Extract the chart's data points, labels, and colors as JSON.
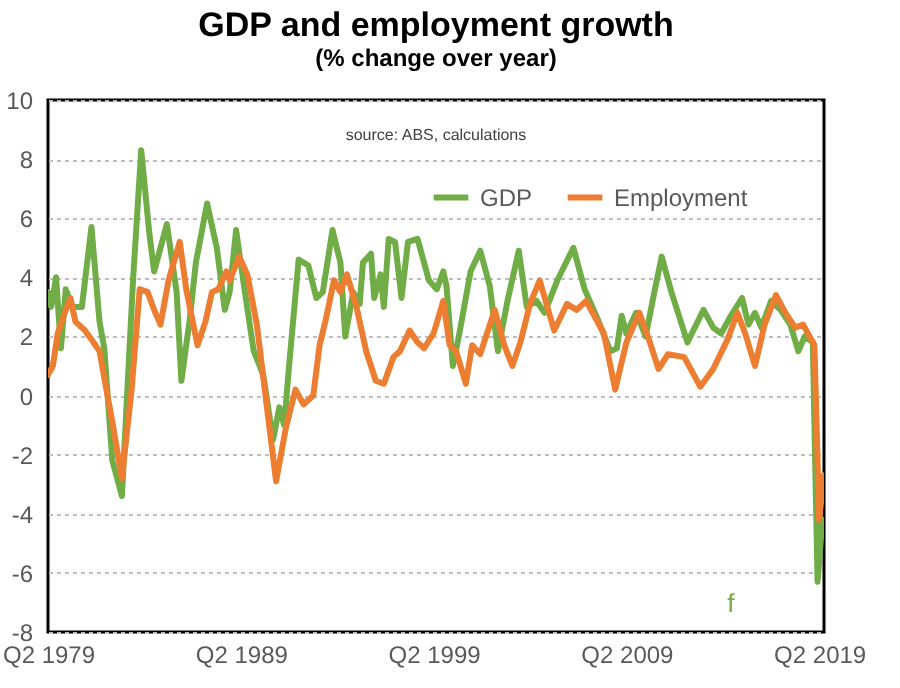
{
  "chart_data": {
    "type": "line",
    "title": "GDP and employment growth",
    "subtitle": "(% change over year)",
    "annotations": [
      "source: ABS, calculations",
      "f"
    ],
    "xlim": [
      "1979-05",
      "2019-08"
    ],
    "xticks": [
      {
        "value": "1979-05",
        "label": "Q2 1979"
      },
      {
        "value": "1989-05",
        "label": "Q2 1989"
      },
      {
        "value": "1999-05",
        "label": "Q2 1999"
      },
      {
        "value": "2009-05",
        "label": "Q2 2009"
      },
      {
        "value": "2019-05",
        "label": "Q2 2019"
      }
    ],
    "ylim": [
      -8,
      10
    ],
    "yticks": [
      -8,
      -6,
      -4,
      -2,
      0,
      2,
      4,
      6,
      8,
      10
    ],
    "grid": "y",
    "legend": "top right",
    "line_style": "solid",
    "series": [
      {
        "name": "GDP",
        "color": "#70ad47",
        "x": [
          "1979-05",
          "1979-07",
          "1979-10",
          "1980-01",
          "1980-04",
          "1980-08",
          "1981-02",
          "1981-08",
          "1982-01",
          "1982-04",
          "1982-09",
          "1983-03",
          "1983-10",
          "1984-03",
          "1984-08",
          "1984-11",
          "1985-07",
          "1986-01",
          "1986-04",
          "1986-09",
          "1987-01",
          "1987-08",
          "1988-02",
          "1988-07",
          "1988-10",
          "1989-02",
          "1989-07",
          "1990-01",
          "1990-07",
          "1991-01",
          "1991-05",
          "1991-08",
          "1991-11",
          "1992-05",
          "1992-11",
          "1993-04",
          "1993-08",
          "1994-02",
          "1994-07",
          "1994-10",
          "1995-03",
          "1995-07",
          "1995-09",
          "1996-02",
          "1996-04",
          "1996-08",
          "1996-10",
          "1997-01",
          "1997-05",
          "1997-09",
          "1998-01",
          "1998-07",
          "1999-02",
          "1999-07",
          "1999-11",
          "2000-01",
          "2000-05",
          "2000-09",
          "2001-04",
          "2001-10",
          "2002-04",
          "2002-09",
          "2003-03",
          "2003-10",
          "2004-03",
          "2004-09",
          "2005-02",
          "2005-10",
          "2006-08",
          "2007-03",
          "2007-11",
          "2008-07",
          "2008-11",
          "2009-02",
          "2009-05",
          "2009-11",
          "2010-05",
          "2010-10",
          "2011-03",
          "2011-09",
          "2012-07",
          "2013-05",
          "2013-11",
          "2014-04",
          "2014-10",
          "2015-05",
          "2015-09",
          "2016-01",
          "2016-05",
          "2016-11",
          "2017-05",
          "2017-11",
          "2018-04",
          "2018-08",
          "2019-01",
          "2019-04",
          "2019-07"
        ],
        "values": [
          3.5,
          3.0,
          4.0,
          1.6,
          3.6,
          3.0,
          3.0,
          5.7,
          2.5,
          1.6,
          -2.2,
          -3.4,
          4.0,
          8.3,
          5.5,
          4.2,
          5.8,
          3.5,
          0.5,
          2.5,
          4.5,
          6.5,
          5.0,
          2.9,
          3.5,
          5.6,
          3.7,
          1.5,
          0.7,
          -1.5,
          -0.4,
          -1.0,
          1.0,
          4.6,
          4.4,
          3.3,
          3.5,
          5.6,
          4.5,
          2.0,
          3.5,
          3.1,
          4.5,
          4.8,
          3.3,
          4.1,
          3.0,
          5.3,
          5.2,
          3.3,
          5.2,
          5.3,
          3.9,
          3.6,
          4.2,
          3.7,
          1.0,
          2.1,
          4.2,
          4.9,
          3.7,
          1.5,
          3.2,
          4.9,
          3.0,
          3.2,
          2.8,
          3.9,
          5.0,
          3.6,
          2.6,
          1.5,
          1.6,
          2.7,
          2.1,
          2.8,
          2.0,
          3.4,
          4.7,
          3.5,
          1.8,
          2.9,
          2.3,
          2.1,
          2.7,
          3.3,
          2.4,
          2.8,
          2.3,
          3.2,
          2.9,
          2.4,
          1.5,
          2.0,
          1.8,
          -6.3,
          -4.2
        ]
      },
      {
        "name": "Employment",
        "color": "#ed7d31",
        "x": [
          "1979-05",
          "1979-08",
          "1979-11",
          "1980-04",
          "1980-07",
          "1980-10",
          "1981-04",
          "1981-08",
          "1982-01",
          "1982-04",
          "1982-09",
          "1983-03",
          "1983-09",
          "1984-02",
          "1984-07",
          "1984-11",
          "1985-03",
          "1985-08",
          "1986-03",
          "1986-07",
          "1987-02",
          "1987-07",
          "1987-11",
          "1988-03",
          "1988-08",
          "1988-10",
          "1989-04",
          "1989-09",
          "1990-03",
          "1990-09",
          "1991-03",
          "1991-09",
          "1992-03",
          "1992-08",
          "1993-02",
          "1993-06",
          "1993-10",
          "1994-03",
          "1994-07",
          "1994-11",
          "1995-05",
          "1995-11",
          "1996-05",
          "1996-10",
          "1997-04",
          "1997-08",
          "1998-02",
          "1998-07",
          "1998-11",
          "1999-05",
          "1999-11",
          "2000-03",
          "2000-07",
          "2001-01",
          "2001-05",
          "2001-10",
          "2002-07",
          "2003-01",
          "2003-06",
          "2003-11",
          "2004-05",
          "2004-11",
          "2005-08",
          "2006-04",
          "2006-10",
          "2007-04",
          "2008-03",
          "2008-10",
          "2009-05",
          "2010-01",
          "2010-07",
          "2011-01",
          "2011-07",
          "2012-05",
          "2013-03",
          "2013-11",
          "2014-08",
          "2015-02",
          "2015-07",
          "2016-01",
          "2016-07",
          "2017-02",
          "2017-08",
          "2018-02",
          "2018-07",
          "2019-02",
          "2019-05",
          "2019-08"
        ],
        "values": [
          0.7,
          1.0,
          2.1,
          2.9,
          3.3,
          2.5,
          2.2,
          1.9,
          1.5,
          0.6,
          -0.9,
          -2.8,
          0.2,
          3.6,
          3.5,
          2.9,
          2.4,
          3.9,
          5.2,
          3.6,
          1.7,
          2.5,
          3.5,
          3.6,
          4.2,
          3.9,
          4.7,
          4.1,
          2.4,
          -0.3,
          -2.9,
          -1.1,
          0.2,
          -0.3,
          0.0,
          1.7,
          2.6,
          3.9,
          3.5,
          4.1,
          3.0,
          1.5,
          0.5,
          0.4,
          1.3,
          1.5,
          2.2,
          1.8,
          1.6,
          2.1,
          3.2,
          1.7,
          1.5,
          0.4,
          1.7,
          1.4,
          2.9,
          1.7,
          1.0,
          1.8,
          3.1,
          3.9,
          2.2,
          3.1,
          2.9,
          3.2,
          2.1,
          0.2,
          1.8,
          2.8,
          1.9,
          0.9,
          1.4,
          1.3,
          0.3,
          0.9,
          1.9,
          2.8,
          2.1,
          1.0,
          2.4,
          3.4,
          2.8,
          2.3,
          2.4,
          1.7,
          -4.2,
          -2.7
        ]
      }
    ]
  }
}
